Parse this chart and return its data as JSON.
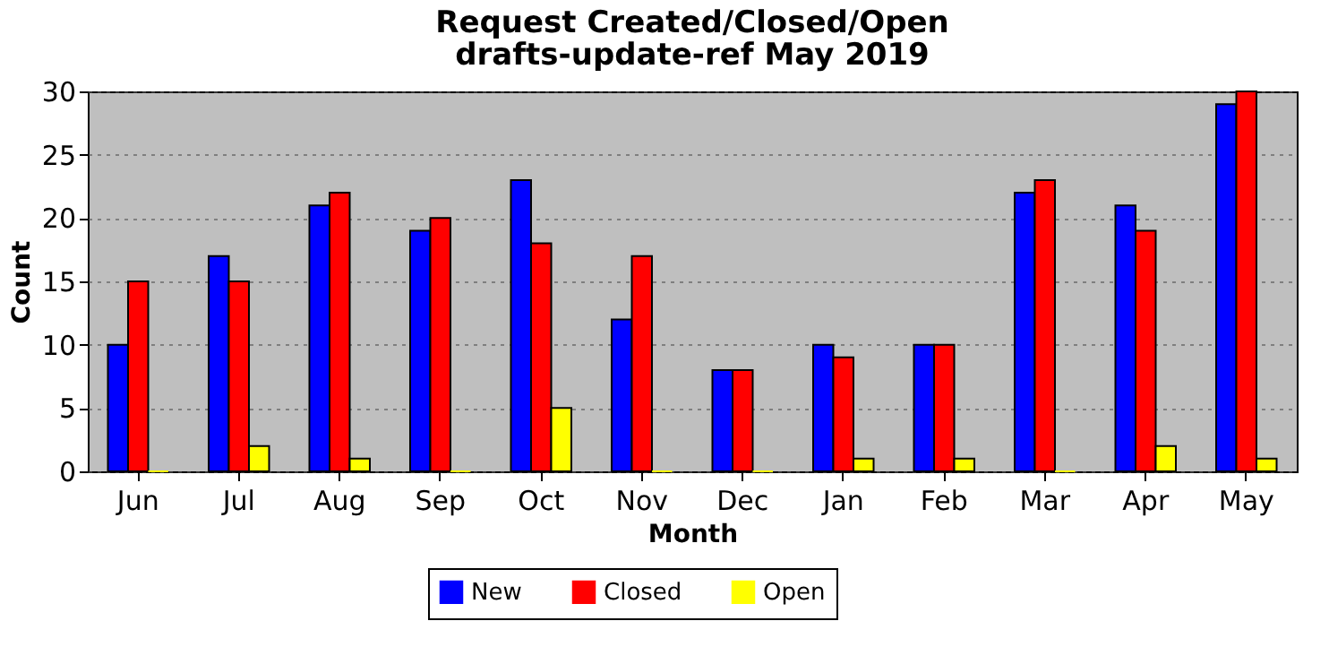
{
  "chart_data": {
    "type": "bar",
    "title": "Request Created/Closed/Open",
    "subtitle": "drafts-update-ref May 2019",
    "xlabel": "Month",
    "ylabel": "Count",
    "categories": [
      "Jun",
      "Jul",
      "Aug",
      "Sep",
      "Oct",
      "Nov",
      "Dec",
      "Jan",
      "Feb",
      "Mar",
      "Apr",
      "May"
    ],
    "series": [
      {
        "name": "New",
        "color": "#0000ff",
        "values": [
          10,
          17,
          21,
          19,
          23,
          12,
          8,
          10,
          10,
          22,
          21,
          29
        ]
      },
      {
        "name": "Closed",
        "color": "#ff0000",
        "values": [
          15,
          15,
          22,
          20,
          18,
          17,
          8,
          9,
          10,
          23,
          19,
          30
        ]
      },
      {
        "name": "Open",
        "color": "#ffff00",
        "values": [
          0,
          2,
          1,
          0,
          5,
          0,
          0,
          1,
          1,
          0,
          2,
          1
        ]
      }
    ],
    "ylim": [
      0,
      30
    ],
    "yticks": [
      0,
      5,
      10,
      15,
      20,
      25,
      30
    ],
    "grid": "y",
    "legend": "bottom"
  }
}
